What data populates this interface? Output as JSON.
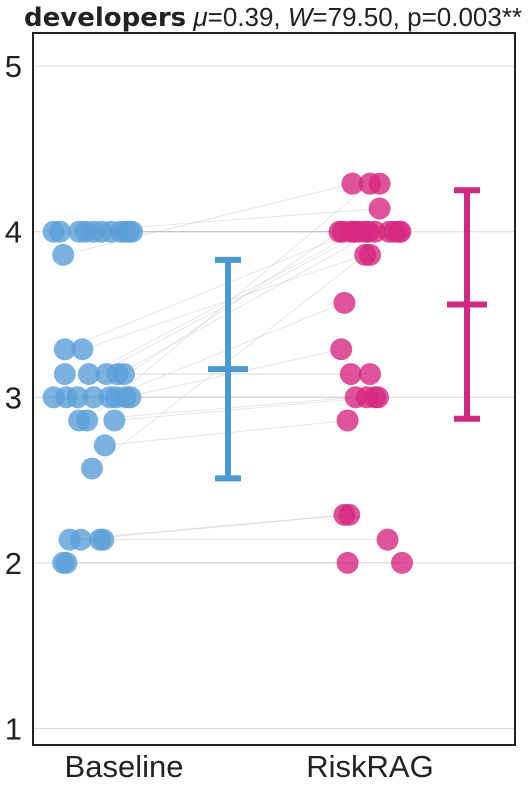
{
  "chart_data": {
    "type": "scatter",
    "title": {
      "group": "developers",
      "mu_symbol": "μ",
      "mu_value": "=0.39, ",
      "w_symbol": "W",
      "w_value": "=79.50, p=0.003**"
    },
    "categories": [
      "Baseline",
      "RiskRAG"
    ],
    "ylim": [
      0.9,
      5.2
    ],
    "yticks": [
      1,
      2,
      3,
      4,
      5
    ],
    "ytick_labels": [
      "1",
      "2",
      "3",
      "4",
      "5"
    ],
    "grid": true,
    "colors": {
      "Baseline": "#5b9fd8",
      "RiskRAG": "#d6287f",
      "baseline_error": "#4d98cf",
      "riskrag_error": "#cf2a80",
      "paired_line": "#bdbdbd",
      "grid": "#d9d9d9"
    },
    "series": [
      {
        "category": "Baseline",
        "points": [
          [
            -0.44,
            4.0
          ],
          [
            -0.4,
            4.0
          ],
          [
            -0.38,
            3.86
          ],
          [
            -0.28,
            4.0
          ],
          [
            -0.24,
            4.0
          ],
          [
            -0.19,
            4.0
          ],
          [
            -0.14,
            4.0
          ],
          [
            -0.08,
            4.0
          ],
          [
            -0.02,
            4.0
          ],
          [
            0.01,
            4.0
          ],
          [
            0.03,
            4.0
          ],
          [
            0.05,
            4.0
          ],
          [
            -0.37,
            3.29
          ],
          [
            -0.26,
            3.29
          ],
          [
            -0.37,
            3.14
          ],
          [
            -0.22,
            3.14
          ],
          [
            -0.44,
            3.0
          ],
          [
            -0.36,
            3.0
          ],
          [
            -0.29,
            3.0
          ],
          [
            -0.19,
            3.0
          ],
          [
            -0.09,
            3.0
          ],
          [
            -0.05,
            3.0
          ],
          [
            0.01,
            3.0
          ],
          [
            0.04,
            3.0
          ],
          [
            -0.11,
            3.14
          ],
          [
            -0.04,
            3.14
          ],
          [
            0.0,
            3.14
          ],
          [
            -0.28,
            2.86
          ],
          [
            -0.23,
            2.86
          ],
          [
            -0.06,
            2.86
          ],
          [
            -0.12,
            2.71
          ],
          [
            -0.2,
            2.57
          ],
          [
            -0.34,
            2.14
          ],
          [
            -0.27,
            2.14
          ],
          [
            -0.15,
            2.14
          ],
          [
            -0.13,
            2.14
          ],
          [
            -0.38,
            2.0
          ],
          [
            -0.36,
            2.0
          ]
        ],
        "mean": 3.17,
        "err_low": 2.51,
        "err_high": 3.83
      },
      {
        "category": "RiskRAG",
        "points": [
          [
            -0.11,
            4.29
          ],
          [
            0.0,
            4.29
          ],
          [
            0.06,
            4.29
          ],
          [
            0.06,
            4.14
          ],
          [
            -0.19,
            4.0
          ],
          [
            -0.17,
            4.0
          ],
          [
            -0.12,
            4.0
          ],
          [
            -0.1,
            4.0
          ],
          [
            -0.07,
            4.0
          ],
          [
            -0.03,
            4.0
          ],
          [
            -0.01,
            4.0
          ],
          [
            0.03,
            4.0
          ],
          [
            0.12,
            4.0
          ],
          [
            0.15,
            4.0
          ],
          [
            0.18,
            4.0
          ],
          [
            0.19,
            4.0
          ],
          [
            -0.03,
            3.86
          ],
          [
            0.0,
            3.86
          ],
          [
            -0.16,
            3.57
          ],
          [
            -0.18,
            3.29
          ],
          [
            -0.12,
            3.14
          ],
          [
            0.0,
            3.14
          ],
          [
            -0.09,
            3.0
          ],
          [
            -0.02,
            3.0
          ],
          [
            0.03,
            3.0
          ],
          [
            0.05,
            3.0
          ],
          [
            -0.14,
            2.86
          ],
          [
            -0.16,
            2.29
          ],
          [
            -0.13,
            2.29
          ],
          [
            0.11,
            2.14
          ],
          [
            -0.14,
            2.0
          ],
          [
            0.2,
            2.0
          ]
        ],
        "mean": 3.56,
        "err_low": 2.87,
        "err_high": 4.25
      }
    ],
    "paired_lines": [
      [
        [
          -0.44,
          4.0
        ],
        [
          -0.19,
          4.0
        ]
      ],
      [
        [
          -0.38,
          3.86
        ],
        [
          -0.11,
          4.29
        ]
      ],
      [
        [
          -0.28,
          4.0
        ],
        [
          0.06,
          4.14
        ]
      ],
      [
        [
          -0.14,
          4.0
        ],
        [
          -0.12,
          4.0
        ]
      ],
      [
        [
          -0.02,
          4.0
        ],
        [
          0.12,
          4.0
        ]
      ],
      [
        [
          0.05,
          4.0
        ],
        [
          0.18,
          4.0
        ]
      ],
      [
        [
          -0.37,
          3.29
        ],
        [
          -0.1,
          4.0
        ]
      ],
      [
        [
          -0.22,
          3.14
        ],
        [
          -0.07,
          4.0
        ]
      ],
      [
        [
          -0.44,
          3.0
        ],
        [
          -0.03,
          4.0
        ]
      ],
      [
        [
          -0.29,
          3.0
        ],
        [
          0.03,
          4.0
        ]
      ],
      [
        [
          -0.09,
          3.0
        ],
        [
          -0.16,
          3.57
        ]
      ],
      [
        [
          0.01,
          3.0
        ],
        [
          -0.18,
          3.29
        ]
      ],
      [
        [
          -0.11,
          3.14
        ],
        [
          -0.12,
          3.14
        ]
      ],
      [
        [
          0.0,
          3.14
        ],
        [
          0.0,
          3.14
        ]
      ],
      [
        [
          -0.28,
          2.86
        ],
        [
          -0.09,
          3.0
        ]
      ],
      [
        [
          -0.06,
          2.86
        ],
        [
          0.03,
          3.0
        ]
      ],
      [
        [
          -0.12,
          2.71
        ],
        [
          -0.14,
          2.86
        ]
      ],
      [
        [
          -0.2,
          2.57
        ],
        [
          0.15,
          4.0
        ]
      ],
      [
        [
          -0.34,
          2.14
        ],
        [
          -0.16,
          2.29
        ]
      ],
      [
        [
          -0.27,
          2.14
        ],
        [
          -0.13,
          2.29
        ]
      ],
      [
        [
          -0.15,
          2.14
        ],
        [
          0.11,
          2.14
        ]
      ],
      [
        [
          -0.38,
          2.0
        ],
        [
          -0.14,
          2.0
        ]
      ],
      [
        [
          -0.36,
          2.0
        ],
        [
          0.2,
          2.0
        ]
      ],
      [
        [
          -0.26,
          3.29
        ],
        [
          -0.03,
          3.86
        ]
      ],
      [
        [
          0.04,
          3.0
        ],
        [
          0.05,
          3.0
        ]
      ],
      [
        [
          -0.05,
          3.0
        ],
        [
          -0.02,
          3.0
        ]
      ],
      [
        [
          -0.19,
          3.0
        ],
        [
          -0.19,
          4.0
        ]
      ],
      [
        [
          -0.23,
          2.86
        ],
        [
          0.0,
          4.29
        ]
      ]
    ]
  }
}
